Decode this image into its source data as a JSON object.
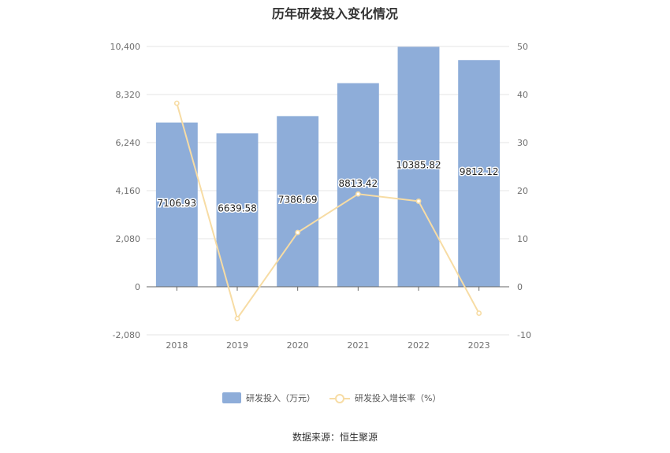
{
  "title": "历年研发投入变化情况",
  "source": "数据来源：恒生聚源",
  "colors": {
    "bar": "#8eadd9",
    "line": "#f7dca4",
    "grid": "#e6e6e6",
    "axis": "#666666"
  },
  "chart_data": {
    "type": "bar",
    "title": "历年研发投入变化情况",
    "categories": [
      "2018",
      "2019",
      "2020",
      "2021",
      "2022",
      "2023"
    ],
    "series": [
      {
        "name": "研发投入（万元）",
        "type": "bar",
        "axis": "left",
        "values": [
          7106.93,
          6639.58,
          7386.69,
          8813.42,
          10385.82,
          9812.12
        ],
        "labels": [
          "7106.93",
          "6639.58",
          "7386.69",
          "8813.42",
          "10385.82",
          "9812.12"
        ]
      },
      {
        "name": "研发投入增长率（%）",
        "type": "line",
        "axis": "right",
        "values": [
          38.2,
          -6.6,
          11.3,
          19.3,
          17.8,
          -5.5
        ]
      }
    ],
    "y_left": {
      "range": [
        -2080,
        10400
      ],
      "ticks": [
        "-2,080",
        "0",
        "2,080",
        "4,160",
        "6,240",
        "8,320",
        "10,400"
      ],
      "tick_values": [
        -2080,
        0,
        2080,
        4160,
        6240,
        8320,
        10400
      ]
    },
    "y_right": {
      "range": [
        -10,
        50
      ],
      "ticks": [
        "-10",
        "0",
        "10",
        "20",
        "30",
        "40",
        "50"
      ],
      "tick_values": [
        -10,
        0,
        10,
        20,
        30,
        40,
        50
      ]
    },
    "grid": true,
    "legend_position": "bottom"
  }
}
